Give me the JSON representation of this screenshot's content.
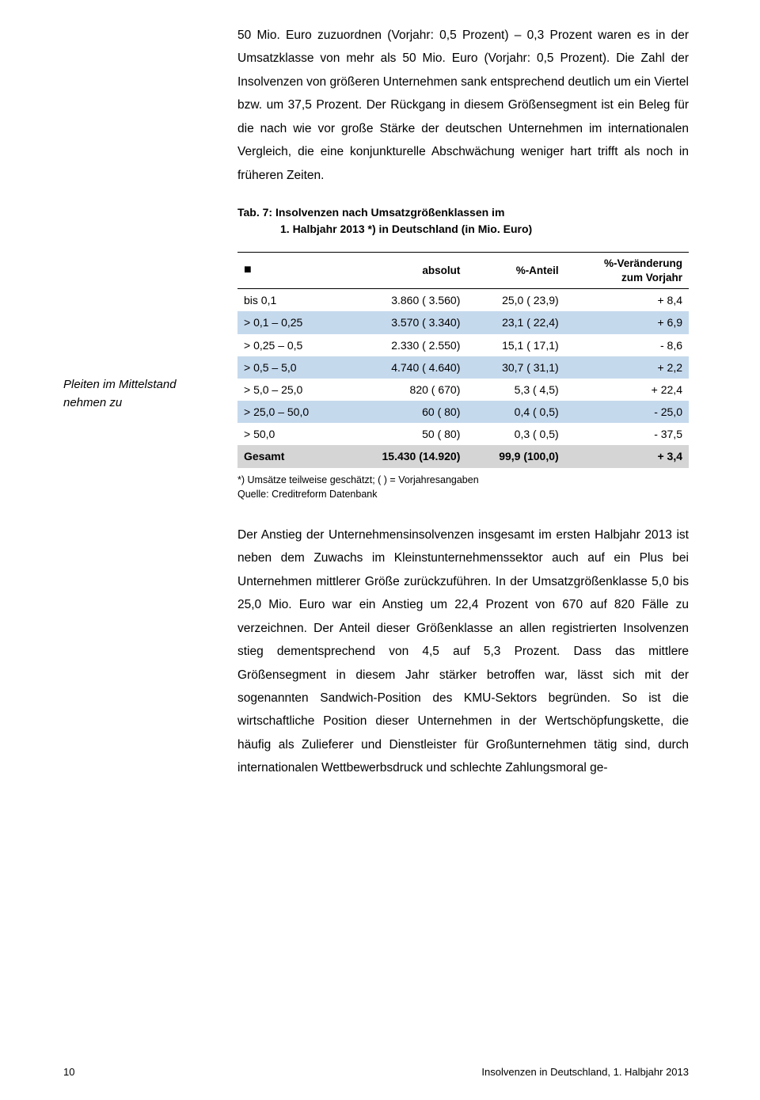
{
  "paragraph_top": "50 Mio. Euro zuzuordnen (Vorjahr: 0,5 Prozent) – 0,3 Prozent waren es in der Umsatzklasse von mehr als 50 Mio. Euro (Vorjahr: 0,5 Prozent). Die Zahl der Insolvenzen von größeren Unternehmen sank entsprechend deutlich um ein Viertel bzw. um 37,5 Prozent. Der Rückgang in diesem Größensegment ist ein Beleg für die nach wie vor große Stärke der deutschen Unternehmen im internationalen Vergleich, die eine konjunkturelle Abschwächung weniger hart trifft als noch in früheren Zeiten.",
  "caption_line1": "Tab. 7:  Insolvenzen nach Umsatzgrößenklassen im",
  "caption_line2": "1. Halbjahr 2013 *) in Deutschland (in Mio. Euro)",
  "table": {
    "headers": {
      "col0": "■",
      "col1": "absolut",
      "col2": "%-Anteil",
      "col3_top": "%-Veränderung",
      "col3_sub": "zum Vorjahr"
    },
    "rows": [
      {
        "label": "bis 0,1",
        "absolut": "3.860 (  3.560)",
        "anteil": "25,0 (  23,9)",
        "change": "+ 8,4",
        "blue": false
      },
      {
        "label": "> 0,1 – 0,25",
        "absolut": "3.570 (  3.340)",
        "anteil": "23,1 (  22,4)",
        "change": "+ 6,9",
        "blue": true
      },
      {
        "label": "> 0,25 – 0,5",
        "absolut": "2.330 (  2.550)",
        "anteil": "15,1 (  17,1)",
        "change": "- 8,6",
        "blue": false
      },
      {
        "label": "> 0,5 – 5,0",
        "absolut": "4.740 (  4.640)",
        "anteil": "30,7 (  31,1)",
        "change": "+ 2,2",
        "blue": true
      },
      {
        "label": "> 5,0 – 25,0",
        "absolut": "820 (     670)",
        "anteil": "5,3 (    4,5)",
        "change": "+ 22,4",
        "blue": false
      },
      {
        "label": "> 25,0 – 50,0",
        "absolut": "60 (       80)",
        "anteil": "0,4 (    0,5)",
        "change": "- 25,0",
        "blue": true
      },
      {
        "label": "> 50,0",
        "absolut": "50 (       80)",
        "anteil": "0,3 (    0,5)",
        "change": "- 37,5",
        "blue": false
      }
    ],
    "total": {
      "label": "Gesamt",
      "absolut": "15.430 (14.920)",
      "anteil": "99,9 (100,0)",
      "change": "+ 3,4"
    },
    "row_blue_bg": "#c5d9ed",
    "row_total_bg": "#d5d5d5"
  },
  "footnote_line1": "*) Umsätze teilweise geschätzt; ( ) = Vorjahresangaben",
  "footnote_line2": "Quelle: Creditreform Datenbank",
  "sidenote": "Pleiten im Mittelstand nehmen zu",
  "paragraph_bottom": "Der Anstieg der Unternehmensinsolvenzen insgesamt im ersten Halbjahr 2013 ist neben dem Zuwachs im Kleinstunternehmenssektor auch auf ein Plus bei Unternehmen mittlerer Größe zurückzuführen. In der Umsatzgrößenklasse 5,0 bis 25,0 Mio. Euro war ein Anstieg um 22,4 Prozent von 670 auf 820 Fälle zu verzeichnen. Der Anteil dieser Größenklasse an allen registrierten Insolvenzen stieg dementsprechend von 4,5 auf 5,3 Prozent. Dass das mittlere Größensegment in diesem Jahr stärker betroffen war, lässt sich mit der sogenannten Sandwich-Position des KMU-Sektors begründen. So ist die wirtschaftliche Position dieser Unternehmen in der Wertschöpfungskette, die häufig als Zulieferer und Dienstleister für Großunternehmen tätig sind, durch internationalen Wettbewerbsdruck und schlechte Zahlungsmoral ge-",
  "footer": {
    "page": "10",
    "title": "Insolvenzen in Deutschland, 1. Halbjahr 2013"
  }
}
